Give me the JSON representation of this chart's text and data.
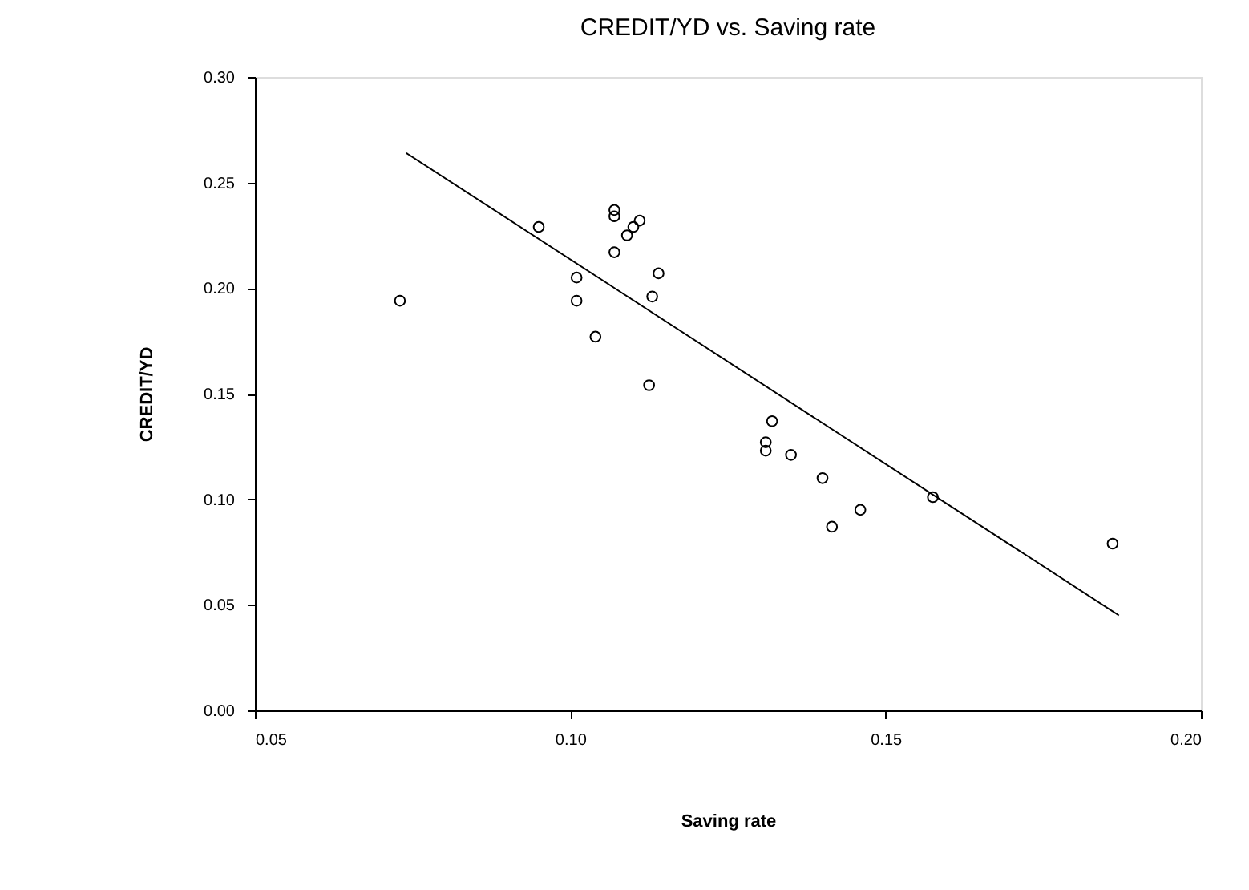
{
  "chart_data": {
    "type": "scatter",
    "title": "CREDIT/YD    vs.    Saving rate",
    "xlabel": "Saving rate",
    "ylabel": "CREDIT/YD",
    "xlim": [
      0.05,
      0.2
    ],
    "xticks": [
      {
        "value": 0.05,
        "label": "0.05"
      },
      {
        "value": 0.1,
        "label": "0.10"
      },
      {
        "value": 0.15,
        "label": "0.15"
      },
      {
        "value": 0.2,
        "label": "0.20"
      }
    ],
    "ylim": [
      0,
      0.3
    ],
    "yticks": [
      {
        "value": 0,
        "label": "0.00"
      },
      {
        "value": 0.05,
        "label": "0.05"
      },
      {
        "value": 0.1,
        "label": "0.10"
      },
      {
        "value": 0.15,
        "label": "0.15"
      },
      {
        "value": 0.2,
        "label": "0.20"
      },
      {
        "value": 0.25,
        "label": "0.25"
      },
      {
        "value": 0.3,
        "label": "0.30"
      }
    ],
    "grid": false,
    "series": [
      {
        "marker": "circle",
        "color": "#000000",
        "x": [
          0.073,
          0.095,
          0.101,
          0.101,
          0.104,
          0.107,
          0.107,
          0.107,
          0.109,
          0.11,
          0.111,
          0.113,
          0.114,
          0.1125,
          0.132,
          0.131,
          0.131,
          0.135,
          0.14,
          0.1415,
          0.146,
          0.1575,
          0.186
        ],
        "values": [
          0.194,
          0.229,
          0.205,
          0.194,
          0.177,
          0.237,
          0.234,
          0.217,
          0.225,
          0.229,
          0.232,
          0.196,
          0.207,
          0.154,
          0.137,
          0.127,
          0.123,
          0.121,
          0.11,
          0.087,
          0.095,
          0.101,
          0.079
        ]
      },
      {
        "type": "line",
        "color": "#000000",
        "line_style": "solid",
        "x": [
          0.074,
          0.187
        ],
        "values": [
          0.264,
          0.045
        ]
      }
    ]
  }
}
